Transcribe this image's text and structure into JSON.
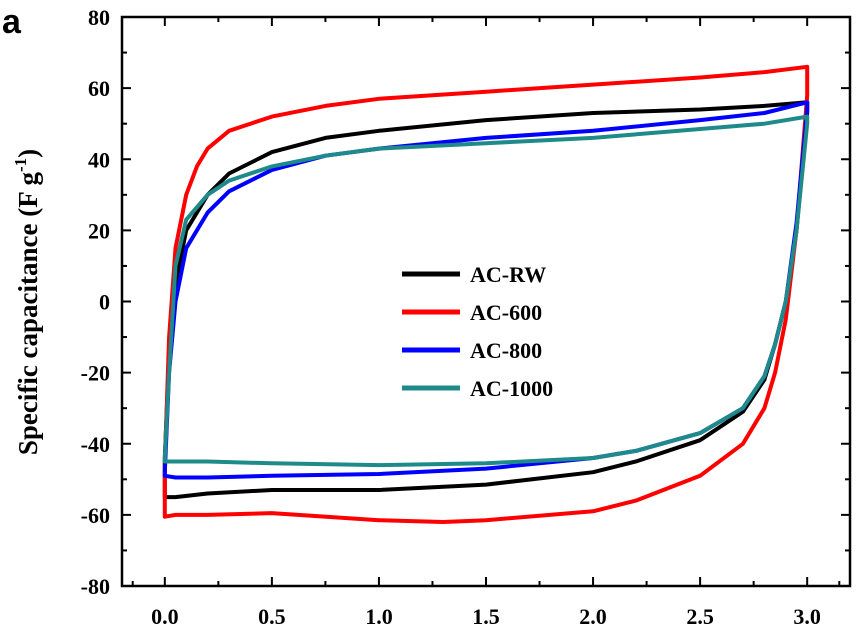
{
  "panel_label": "a",
  "chart_data": {
    "type": "line",
    "title": "",
    "xlabel": "",
    "ylabel_main": "Specific capacitance (F g",
    "ylabel_sup": "-1",
    "ylabel_close": ")",
    "xlim": [
      -0.2,
      3.2
    ],
    "ylim": [
      -80,
      80
    ],
    "x_ticks": [
      0.0,
      0.5,
      1.0,
      1.5,
      2.0,
      2.5,
      3.0
    ],
    "x_tick_labels": [
      "0.0",
      "0.5",
      "1.0",
      "1.5",
      "2.0",
      "2.5",
      "3.0"
    ],
    "y_ticks": [
      -80,
      -60,
      -40,
      -20,
      0,
      20,
      40,
      60,
      80
    ],
    "y_tick_labels": [
      "-80",
      "-60",
      "-40",
      "-20",
      "0",
      "20",
      "40",
      "60",
      "80"
    ],
    "legend_position": "center",
    "series": [
      {
        "name": "AC-RW",
        "color": "#000000",
        "x": [
          0.0,
          0.02,
          0.05,
          0.1,
          0.2,
          0.3,
          0.5,
          0.75,
          1.0,
          1.5,
          2.0,
          2.5,
          2.8,
          3.0,
          3.0,
          2.95,
          2.9,
          2.85,
          2.8,
          2.7,
          2.5,
          2.2,
          2.0,
          1.5,
          1.0,
          0.5,
          0.2,
          0.05,
          0.0,
          0.0
        ],
        "y": [
          -44,
          -15,
          5,
          20,
          30,
          36,
          42,
          46,
          48,
          51,
          53,
          54,
          55,
          56,
          53,
          20,
          0,
          -12,
          -22,
          -31,
          -39,
          -45,
          -48,
          -51.5,
          -53,
          -53,
          -54,
          -55,
          -55,
          -44
        ]
      },
      {
        "name": "AC-600",
        "color": "#ff0000",
        "x": [
          0.0,
          0.02,
          0.05,
          0.1,
          0.15,
          0.2,
          0.3,
          0.5,
          0.75,
          1.0,
          1.5,
          2.0,
          2.5,
          2.8,
          3.0,
          3.0,
          2.95,
          2.9,
          2.85,
          2.8,
          2.7,
          2.5,
          2.2,
          2.0,
          1.5,
          1.3,
          1.0,
          0.5,
          0.2,
          0.05,
          0.0,
          0.0
        ],
        "y": [
          -46,
          -10,
          15,
          30,
          38,
          43,
          48,
          52,
          55,
          57,
          59,
          61,
          63,
          64.5,
          66,
          58,
          20,
          -5,
          -20,
          -30,
          -40,
          -49,
          -56,
          -59,
          -61.5,
          -62,
          -61.5,
          -59.5,
          -60,
          -60,
          -60.5,
          -46
        ]
      },
      {
        "name": "AC-800",
        "color": "#0000ff",
        "x": [
          0.0,
          0.02,
          0.05,
          0.1,
          0.2,
          0.3,
          0.5,
          0.75,
          1.0,
          1.5,
          2.0,
          2.5,
          2.8,
          3.0,
          3.0,
          2.95,
          2.9,
          2.85,
          2.8,
          2.7,
          2.5,
          2.2,
          2.0,
          1.5,
          1.0,
          0.5,
          0.2,
          0.05,
          0.0,
          0.0
        ],
        "y": [
          -48,
          -20,
          0,
          15,
          25,
          31,
          37,
          41,
          43,
          46,
          48,
          51,
          53,
          56,
          54,
          22,
          0,
          -12,
          -21,
          -30,
          -37,
          -42,
          -44,
          -47,
          -48.5,
          -49,
          -49.5,
          -49.5,
          -49,
          -48
        ]
      },
      {
        "name": "AC-1000",
        "color": "#1f8a8a",
        "x": [
          0.0,
          0.02,
          0.05,
          0.1,
          0.2,
          0.3,
          0.5,
          0.75,
          1.0,
          1.5,
          2.0,
          2.5,
          2.8,
          3.0,
          3.0,
          2.95,
          2.9,
          2.85,
          2.8,
          2.7,
          2.5,
          2.2,
          2.0,
          1.5,
          1.0,
          0.5,
          0.2,
          0.05,
          0.0,
          0.0
        ],
        "y": [
          -44,
          -20,
          10,
          23,
          30,
          34,
          38,
          41,
          43,
          44.5,
          46,
          48.5,
          50,
          52,
          50,
          20,
          0,
          -12,
          -21,
          -30,
          -37,
          -42,
          -44,
          -45.5,
          -46,
          -45.5,
          -45,
          -45,
          -45,
          -44
        ]
      }
    ]
  }
}
